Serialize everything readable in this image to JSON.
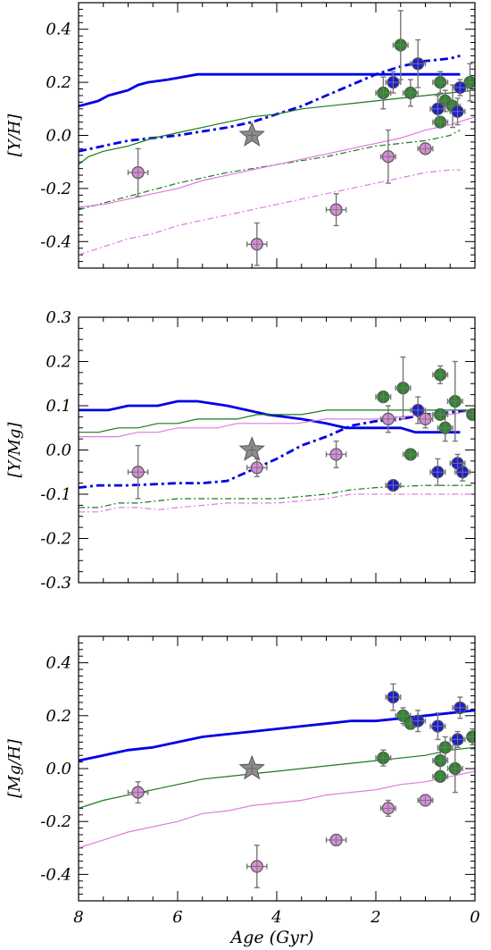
{
  "figure": {
    "xlabel": "Age (Gyr)",
    "xlim": [
      8,
      0
    ],
    "xticks": [
      "8",
      "6",
      "4",
      "2",
      "0"
    ]
  },
  "chart_data": [
    {
      "type": "scatter",
      "ylabel": "[Y/H]",
      "xlim": [
        8,
        0
      ],
      "ylim": [
        -0.5,
        0.5
      ],
      "yticks": [
        "-0.4",
        "-0.2",
        "0.0",
        "0.2",
        "0.4"
      ],
      "series": [
        {
          "name": "",
          "kind": "line",
          "color": "#0000e6",
          "style": "solid-thick",
          "x": [
            8,
            7.8,
            7.6,
            7.4,
            7.0,
            6.8,
            6.6,
            6.2,
            5.6,
            2.0,
            0.3
          ],
          "y": [
            0.11,
            0.12,
            0.13,
            0.15,
            0.17,
            0.19,
            0.2,
            0.21,
            0.23,
            0.23,
            0.23
          ]
        },
        {
          "name": "",
          "kind": "line",
          "color": "#0000e6",
          "style": "dashdot-thick",
          "x": [
            8,
            7.0,
            6.0,
            5.0,
            4.5,
            4.0,
            3.5,
            3.0,
            2.5,
            2.0,
            1.5,
            1.0,
            0.5,
            0.3
          ],
          "y": [
            -0.06,
            -0.02,
            0.0,
            0.03,
            0.05,
            0.08,
            0.11,
            0.15,
            0.19,
            0.23,
            0.26,
            0.28,
            0.29,
            0.3
          ]
        },
        {
          "name": "",
          "kind": "line",
          "color": "#1a7a1a",
          "style": "solid",
          "x": [
            8,
            7.8,
            7.5,
            7.0,
            6.5,
            6.0,
            5.5,
            5.0,
            4.5,
            4.0,
            3.5,
            3.0,
            2.5,
            2.0,
            1.5,
            1.0,
            0.5,
            0.0
          ],
          "y": [
            -0.11,
            -0.08,
            -0.06,
            -0.04,
            -0.01,
            0.01,
            0.03,
            0.05,
            0.07,
            0.08,
            0.1,
            0.11,
            0.12,
            0.13,
            0.14,
            0.15,
            0.16,
            0.17
          ]
        },
        {
          "name": "",
          "kind": "line",
          "color": "#1a7a1a",
          "style": "dashdot",
          "x": [
            8,
            7.0,
            6.0,
            5.0,
            4.0,
            3.0,
            2.5,
            2.0,
            1.5,
            1.0,
            0.5,
            0.3
          ],
          "y": [
            -0.28,
            -0.23,
            -0.18,
            -0.14,
            -0.11,
            -0.08,
            -0.06,
            -0.04,
            -0.03,
            -0.02,
            0.0,
            0.02
          ]
        },
        {
          "name": "",
          "kind": "line",
          "color": "#e07ae0",
          "style": "solid",
          "x": [
            8,
            7.5,
            7.0,
            6.5,
            6.0,
            5.5,
            5.0,
            4.5,
            4.0,
            3.5,
            3.0,
            2.5,
            2.0,
            1.5,
            1.0,
            0.5,
            0.0
          ],
          "y": [
            -0.27,
            -0.26,
            -0.24,
            -0.22,
            -0.2,
            -0.17,
            -0.15,
            -0.13,
            -0.11,
            -0.09,
            -0.07,
            -0.05,
            -0.03,
            -0.01,
            0.02,
            0.04,
            0.07
          ]
        },
        {
          "name": "",
          "kind": "line",
          "color": "#e07ae0",
          "style": "dashdot",
          "x": [
            8,
            7.5,
            7.0,
            6.5,
            6.0,
            5.5,
            5.0,
            4.5,
            4.0,
            3.5,
            3.0,
            2.5,
            2.0,
            1.5,
            1.0,
            0.5,
            0.3
          ],
          "y": [
            -0.45,
            -0.42,
            -0.39,
            -0.37,
            -0.34,
            -0.32,
            -0.3,
            -0.28,
            -0.26,
            -0.24,
            -0.22,
            -0.2,
            -0.18,
            -0.16,
            -0.14,
            -0.13,
            -0.13
          ]
        },
        {
          "name": "",
          "kind": "points",
          "color": "#d98ad9",
          "x": [
            6.8,
            4.4,
            2.8,
            1.75,
            1.0
          ],
          "y": [
            -0.14,
            -0.41,
            -0.28,
            -0.08,
            -0.05
          ],
          "xerr": [
            0.2,
            0.2,
            0.2,
            0.15,
            0.15
          ],
          "yerr": [
            0.09,
            0.08,
            0.06,
            0.1,
            0.02
          ]
        },
        {
          "name": "",
          "kind": "points",
          "color": "#2a8a2a",
          "x": [
            1.85,
            1.5,
            1.3,
            0.7,
            0.6,
            0.7,
            0.45,
            0.1
          ],
          "y": [
            0.16,
            0.34,
            0.16,
            0.2,
            0.13,
            0.05,
            0.11,
            0.2
          ],
          "xerr": [
            0.15,
            0.15,
            0.15,
            0.15,
            0.15,
            0.15,
            0.15,
            0.1
          ],
          "yerr": [
            0.06,
            0.13,
            0.05,
            0.04,
            0.04,
            0.02,
            0.08,
            0.07
          ]
        },
        {
          "name": "",
          "kind": "points",
          "color": "#1c1cd6",
          "x": [
            1.65,
            1.15,
            0.75,
            0.3,
            0.35
          ],
          "y": [
            0.2,
            0.27,
            0.1,
            0.18,
            0.09
          ],
          "xerr": [
            0.15,
            0.15,
            0.15,
            0.15,
            0.15
          ],
          "yerr": [
            0.04,
            0.09,
            0.05,
            0.03,
            0.05
          ]
        },
        {
          "name": "",
          "kind": "sun",
          "x": [
            4.5
          ],
          "y": [
            0.0
          ]
        }
      ]
    },
    {
      "type": "scatter",
      "ylabel": "[Y/Mg]",
      "xlim": [
        8,
        0
      ],
      "ylim": [
        -0.3,
        0.3
      ],
      "yticks": [
        "-0.3",
        "-0.2",
        "-0.1",
        "0.0",
        "0.1",
        "0.2",
        "0.3"
      ],
      "series": [
        {
          "name": "",
          "kind": "line",
          "color": "#0000e6",
          "style": "solid-thick",
          "x": [
            8,
            7.4,
            7.0,
            6.4,
            6.0,
            5.6,
            5.0,
            4.6,
            4.2,
            3.5,
            3.0,
            2.6,
            2.0,
            1.5,
            1.2,
            0.3
          ],
          "y": [
            0.09,
            0.09,
            0.1,
            0.1,
            0.11,
            0.11,
            0.1,
            0.09,
            0.08,
            0.07,
            0.06,
            0.05,
            0.05,
            0.05,
            0.04,
            0.04
          ]
        },
        {
          "name": "",
          "kind": "line",
          "color": "#0000e6",
          "style": "dashdot-thick",
          "x": [
            8,
            7.6,
            7.0,
            6.0,
            5.5,
            5.0,
            4.6,
            4.3,
            4.0,
            3.5,
            3.0,
            2.5,
            2.0,
            1.5,
            1.0,
            0.5,
            0.0
          ],
          "y": [
            -0.085,
            -0.08,
            -0.08,
            -0.075,
            -0.075,
            -0.07,
            -0.05,
            -0.035,
            -0.02,
            0.01,
            0.03,
            0.055,
            0.065,
            0.07,
            0.08,
            0.085,
            0.09
          ]
        },
        {
          "name": "",
          "kind": "line",
          "color": "#1a7a1a",
          "style": "solid",
          "x": [
            8,
            7.6,
            7.2,
            6.8,
            6.4,
            6.0,
            5.6,
            5.2,
            4.8,
            4.4,
            4.0,
            3.5,
            3.0,
            2.0,
            1.0,
            0.5,
            0.0
          ],
          "y": [
            0.04,
            0.04,
            0.05,
            0.05,
            0.06,
            0.06,
            0.07,
            0.07,
            0.07,
            0.08,
            0.08,
            0.08,
            0.09,
            0.09,
            0.09,
            0.09,
            0.09
          ]
        },
        {
          "name": "",
          "kind": "line",
          "color": "#1a7a1a",
          "style": "dashdot",
          "x": [
            8,
            7.6,
            7.2,
            6.8,
            6.4,
            6.0,
            5.0,
            4.0,
            3.0,
            2.5,
            2.0,
            1.0,
            0.0
          ],
          "y": [
            -0.13,
            -0.13,
            -0.12,
            -0.12,
            -0.115,
            -0.11,
            -0.11,
            -0.11,
            -0.1,
            -0.09,
            -0.085,
            -0.08,
            -0.08
          ]
        },
        {
          "name": "",
          "kind": "line",
          "color": "#e07ae0",
          "style": "solid",
          "x": [
            8,
            7.6,
            7.2,
            6.8,
            6.4,
            6.0,
            5.6,
            5.2,
            4.8,
            4.4,
            4.0,
            3.6,
            3.0,
            2.0,
            1.0,
            0.5,
            0.0
          ],
          "y": [
            0.03,
            0.03,
            0.03,
            0.04,
            0.04,
            0.05,
            0.05,
            0.05,
            0.06,
            0.06,
            0.06,
            0.06,
            0.07,
            0.07,
            0.08,
            0.08,
            0.09
          ]
        },
        {
          "name": "",
          "kind": "line",
          "color": "#e07ae0",
          "style": "dashdot",
          "x": [
            8,
            7.6,
            7.2,
            6.8,
            6.4,
            6.0,
            5.0,
            4.0,
            3.0,
            2.5,
            2.0,
            1.0,
            0.0
          ],
          "y": [
            -0.14,
            -0.14,
            -0.13,
            -0.13,
            -0.135,
            -0.13,
            -0.12,
            -0.12,
            -0.11,
            -0.1,
            -0.1,
            -0.1,
            -0.1
          ]
        },
        {
          "name": "",
          "kind": "points",
          "color": "#d98ad9",
          "x": [
            6.8,
            4.4,
            2.8,
            1.75,
            1.0
          ],
          "y": [
            -0.05,
            -0.04,
            -0.01,
            0.07,
            0.07
          ],
          "xerr": [
            0.2,
            0.2,
            0.2,
            0.15,
            0.15
          ],
          "yerr": [
            0.06,
            0.02,
            0.03,
            0.03,
            0.02
          ]
        },
        {
          "name": "",
          "kind": "points",
          "color": "#2a8a2a",
          "x": [
            1.85,
            1.45,
            1.3,
            0.7,
            0.6,
            0.7,
            0.4,
            0.05
          ],
          "y": [
            0.12,
            0.14,
            -0.01,
            0.17,
            0.05,
            0.08,
            0.11,
            0.08
          ],
          "xerr": [
            0.15,
            0.15,
            0.15,
            0.15,
            0.15,
            0.15,
            0.15,
            0.1
          ],
          "yerr": [
            0.01,
            0.07,
            0.01,
            0.02,
            0.03,
            0.01,
            0.09,
            0.01
          ]
        },
        {
          "name": "",
          "kind": "points",
          "color": "#1c1cd6",
          "x": [
            1.65,
            1.15,
            0.75,
            0.35,
            0.25
          ],
          "y": [
            -0.08,
            0.09,
            -0.05,
            -0.03,
            -0.05
          ],
          "xerr": [
            0.15,
            0.15,
            0.15,
            0.15,
            0.15
          ],
          "yerr": [
            0.01,
            0.03,
            0.03,
            0.02,
            0.02
          ]
        },
        {
          "name": "",
          "kind": "sun",
          "x": [
            4.5
          ],
          "y": [
            0.0
          ]
        }
      ]
    },
    {
      "type": "scatter",
      "ylabel": "[Mg/H]",
      "xlim": [
        8,
        0
      ],
      "ylim": [
        -0.5,
        0.5
      ],
      "yticks": [
        "-0.4",
        "-0.2",
        "0.0",
        "0.2",
        "0.4"
      ],
      "series": [
        {
          "name": "",
          "kind": "line",
          "color": "#0000e6",
          "style": "solid-thick",
          "x": [
            8,
            7.5,
            7.0,
            6.5,
            6.0,
            5.5,
            5.0,
            4.5,
            4.0,
            3.5,
            3.0,
            2.5,
            2.0,
            1.5,
            1.0,
            0.5,
            0.0
          ],
          "y": [
            0.03,
            0.05,
            0.07,
            0.08,
            0.1,
            0.12,
            0.13,
            0.14,
            0.15,
            0.16,
            0.17,
            0.18,
            0.18,
            0.19,
            0.2,
            0.21,
            0.22
          ]
        },
        {
          "name": "",
          "kind": "line",
          "color": "#1a7a1a",
          "style": "solid",
          "x": [
            8,
            7.5,
            7.0,
            6.5,
            6.0,
            5.5,
            5.0,
            4.5,
            4.0,
            3.5,
            3.0,
            2.5,
            2.0,
            1.5,
            1.0,
            0.5,
            0.0
          ],
          "y": [
            -0.15,
            -0.12,
            -0.1,
            -0.08,
            -0.06,
            -0.04,
            -0.03,
            -0.02,
            -0.01,
            0.0,
            0.01,
            0.02,
            0.03,
            0.04,
            0.05,
            0.07,
            0.08
          ]
        },
        {
          "name": "",
          "kind": "line",
          "color": "#e07ae0",
          "style": "solid",
          "x": [
            8,
            7.5,
            7.0,
            6.5,
            6.0,
            5.5,
            5.0,
            4.5,
            4.0,
            3.5,
            3.0,
            2.5,
            2.0,
            1.5,
            1.0,
            0.5,
            0.0
          ],
          "y": [
            -0.3,
            -0.27,
            -0.24,
            -0.22,
            -0.2,
            -0.17,
            -0.16,
            -0.14,
            -0.13,
            -0.12,
            -0.1,
            -0.09,
            -0.08,
            -0.06,
            -0.05,
            -0.03,
            -0.01
          ]
        },
        {
          "name": "",
          "kind": "points",
          "color": "#d98ad9",
          "x": [
            6.8,
            4.4,
            2.8,
            1.75,
            1.0
          ],
          "y": [
            -0.09,
            -0.37,
            -0.27,
            -0.15,
            -0.12
          ],
          "xerr": [
            0.2,
            0.2,
            0.2,
            0.15,
            0.15
          ],
          "yerr": [
            0.04,
            0.08,
            0.02,
            0.03,
            0.02
          ]
        },
        {
          "name": "",
          "kind": "points",
          "color": "#2a8a2a",
          "x": [
            1.85,
            1.45,
            1.3,
            0.7,
            0.6,
            0.7,
            0.4,
            0.05
          ],
          "y": [
            0.04,
            0.2,
            0.17,
            0.03,
            0.08,
            -0.03,
            0.0,
            0.12
          ],
          "xerr": [
            0.15,
            0.15,
            0.15,
            0.15,
            0.15,
            0.15,
            0.15,
            0.1
          ],
          "yerr": [
            0.03,
            0.03,
            0.02,
            0.04,
            0.04,
            0.02,
            0.09,
            0.03
          ]
        },
        {
          "name": "",
          "kind": "points",
          "color": "#1c1cd6",
          "x": [
            1.65,
            1.15,
            0.75,
            0.3,
            0.35
          ],
          "y": [
            0.27,
            0.18,
            0.16,
            0.23,
            0.11
          ],
          "xerr": [
            0.15,
            0.15,
            0.15,
            0.15,
            0.15
          ],
          "yerr": [
            0.05,
            0.04,
            0.05,
            0.04,
            0.03
          ]
        },
        {
          "name": "",
          "kind": "sun",
          "x": [
            4.5
          ],
          "y": [
            0.0
          ]
        }
      ]
    }
  ]
}
